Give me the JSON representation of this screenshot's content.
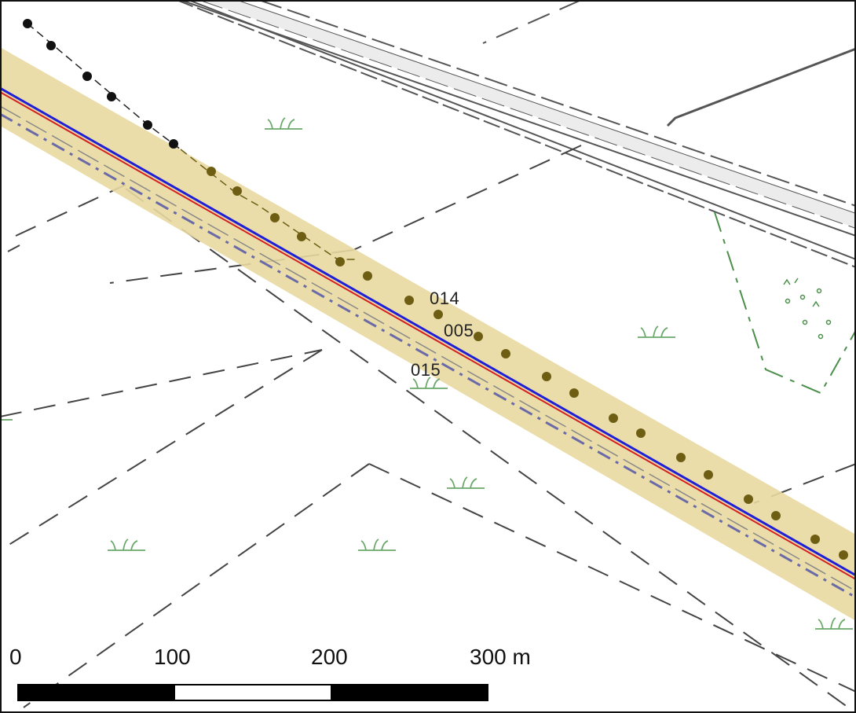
{
  "map": {
    "feature_labels": [
      "014",
      "005",
      "015"
    ],
    "scale_bar": {
      "ticks": [
        "0",
        "100",
        "200",
        "300 m"
      ],
      "segment_colors": [
        "#000000",
        "#ffffff",
        "#000000"
      ]
    },
    "colors": {
      "corridor_fill": "#e8d9a0",
      "centerline": "#1f1fd6",
      "red_line": "#d42020",
      "dot_fill": "#6e5e14",
      "road": "#555555",
      "vegetation": "#6aa86a",
      "dashed_path": "#444444"
    },
    "icons": [
      "grass-symbol-icon",
      "pole-dot-icon"
    ]
  }
}
